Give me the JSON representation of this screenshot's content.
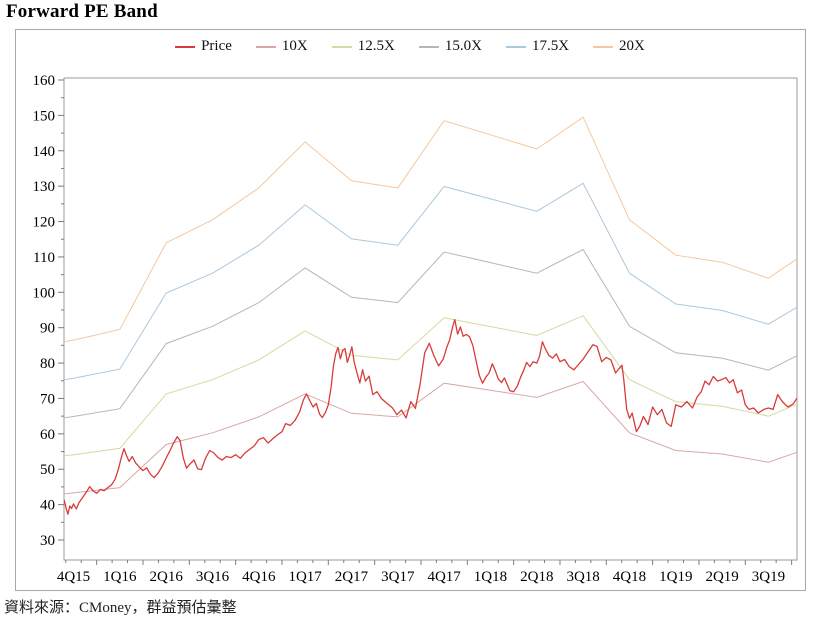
{
  "title": "Forward PE Band",
  "source": {
    "text": "資料來源：CMoney，群益預估彙整"
  },
  "chart_data": {
    "type": "line",
    "title": "Forward PE Band",
    "legend_position": "top-center",
    "grid": false,
    "x_categories": [
      "4Q15",
      "1Q16",
      "2Q16",
      "3Q16",
      "4Q16",
      "1Q17",
      "2Q17",
      "3Q17",
      "4Q17",
      "1Q18",
      "2Q18",
      "3Q18",
      "4Q18",
      "1Q19",
      "2Q19",
      "3Q19"
    ],
    "y_axis": {
      "min": 30,
      "max": 160,
      "major_step": 10,
      "minor_step": 5
    },
    "band_q": [
      -0.205,
      0,
      1,
      2,
      3,
      4,
      5,
      6,
      7,
      8,
      9,
      10,
      11,
      12,
      13,
      14,
      15,
      15.62
    ],
    "series": [
      {
        "name": "Price",
        "color": "#d93b3b",
        "width": 1.3,
        "points": [
          [
            -0.2,
            41.3
          ],
          [
            -0.16,
            39.0
          ],
          [
            -0.12,
            37.3
          ],
          [
            -0.08,
            39.6
          ],
          [
            -0.04,
            38.9
          ],
          [
            0.0,
            40.2
          ],
          [
            0.06,
            38.8
          ],
          [
            0.12,
            40.6
          ],
          [
            0.2,
            42.1
          ],
          [
            0.28,
            43.6
          ],
          [
            0.35,
            45.1
          ],
          [
            0.42,
            43.9
          ],
          [
            0.5,
            43.2
          ],
          [
            0.58,
            44.3
          ],
          [
            0.66,
            43.9
          ],
          [
            0.74,
            44.8
          ],
          [
            0.82,
            45.6
          ],
          [
            0.9,
            47.2
          ],
          [
            0.97,
            50.0
          ],
          [
            1.03,
            53.2
          ],
          [
            1.09,
            55.8
          ],
          [
            1.14,
            54.0
          ],
          [
            1.2,
            52.2
          ],
          [
            1.27,
            53.6
          ],
          [
            1.34,
            51.8
          ],
          [
            1.42,
            50.6
          ],
          [
            1.5,
            49.6
          ],
          [
            1.58,
            50.4
          ],
          [
            1.66,
            48.6
          ],
          [
            1.74,
            47.6
          ],
          [
            1.83,
            49.0
          ],
          [
            1.92,
            51.0
          ],
          [
            2.0,
            53.2
          ],
          [
            2.08,
            55.2
          ],
          [
            2.16,
            57.4
          ],
          [
            2.24,
            59.2
          ],
          [
            2.3,
            58.1
          ],
          [
            2.37,
            53.2
          ],
          [
            2.44,
            50.3
          ],
          [
            2.52,
            51.6
          ],
          [
            2.6,
            52.6
          ],
          [
            2.68,
            50.1
          ],
          [
            2.76,
            49.9
          ],
          [
            2.85,
            53.1
          ],
          [
            2.94,
            55.3
          ],
          [
            3.03,
            54.6
          ],
          [
            3.12,
            53.3
          ],
          [
            3.21,
            52.6
          ],
          [
            3.3,
            53.6
          ],
          [
            3.4,
            53.3
          ],
          [
            3.5,
            54.1
          ],
          [
            3.6,
            53.1
          ],
          [
            3.7,
            54.6
          ],
          [
            3.8,
            55.6
          ],
          [
            3.9,
            56.6
          ],
          [
            4.0,
            58.4
          ],
          [
            4.1,
            58.9
          ],
          [
            4.2,
            57.4
          ],
          [
            4.3,
            58.6
          ],
          [
            4.4,
            59.7
          ],
          [
            4.5,
            60.6
          ],
          [
            4.58,
            62.9
          ],
          [
            4.68,
            62.4
          ],
          [
            4.78,
            63.8
          ],
          [
            4.88,
            66.2
          ],
          [
            4.96,
            69.5
          ],
          [
            5.03,
            71.3
          ],
          [
            5.1,
            69.4
          ],
          [
            5.17,
            67.6
          ],
          [
            5.24,
            68.6
          ],
          [
            5.31,
            65.6
          ],
          [
            5.37,
            64.6
          ],
          [
            5.44,
            66.1
          ],
          [
            5.5,
            68.2
          ],
          [
            5.56,
            73.2
          ],
          [
            5.61,
            79.1
          ],
          [
            5.66,
            82.6
          ],
          [
            5.71,
            84.4
          ],
          [
            5.76,
            81.2
          ],
          [
            5.81,
            83.6
          ],
          [
            5.86,
            84.1
          ],
          [
            5.91,
            80.2
          ],
          [
            5.96,
            82.2
          ],
          [
            6.01,
            84.6
          ],
          [
            6.06,
            80.1
          ],
          [
            6.12,
            77.2
          ],
          [
            6.18,
            74.4
          ],
          [
            6.24,
            78.1
          ],
          [
            6.3,
            74.9
          ],
          [
            6.38,
            76.3
          ],
          [
            6.46,
            71.1
          ],
          [
            6.55,
            71.9
          ],
          [
            6.65,
            69.9
          ],
          [
            6.76,
            68.7
          ],
          [
            6.88,
            67.4
          ],
          [
            6.98,
            65.4
          ],
          [
            7.08,
            66.7
          ],
          [
            7.18,
            64.5
          ],
          [
            7.28,
            69.1
          ],
          [
            7.38,
            67.2
          ],
          [
            7.48,
            73.9
          ],
          [
            7.58,
            82.9
          ],
          [
            7.68,
            85.6
          ],
          [
            7.78,
            82.1
          ],
          [
            7.88,
            79.2
          ],
          [
            7.98,
            81.1
          ],
          [
            8.05,
            84.2
          ],
          [
            8.12,
            86.6
          ],
          [
            8.18,
            90.1
          ],
          [
            8.23,
            92.3
          ],
          [
            8.29,
            88.2
          ],
          [
            8.35,
            90.2
          ],
          [
            8.41,
            87.6
          ],
          [
            8.48,
            88.1
          ],
          [
            8.55,
            87.4
          ],
          [
            8.62,
            84.9
          ],
          [
            8.7,
            80.0
          ],
          [
            8.76,
            76.4
          ],
          [
            8.83,
            74.3
          ],
          [
            8.9,
            76.0
          ],
          [
            8.97,
            77.2
          ],
          [
            9.04,
            79.8
          ],
          [
            9.1,
            78.0
          ],
          [
            9.17,
            75.5
          ],
          [
            9.24,
            74.5
          ],
          [
            9.3,
            75.8
          ],
          [
            9.36,
            74.0
          ],
          [
            9.42,
            72.2
          ],
          [
            9.5,
            71.9
          ],
          [
            9.58,
            73.5
          ],
          [
            9.65,
            76.0
          ],
          [
            9.72,
            78.0
          ],
          [
            9.78,
            80.2
          ],
          [
            9.85,
            79.0
          ],
          [
            9.92,
            80.4
          ],
          [
            10.0,
            80.0
          ],
          [
            10.06,
            82.0
          ],
          [
            10.12,
            86.0
          ],
          [
            10.18,
            84.2
          ],
          [
            10.26,
            82.2
          ],
          [
            10.34,
            81.4
          ],
          [
            10.42,
            82.6
          ],
          [
            10.5,
            80.4
          ],
          [
            10.6,
            81.0
          ],
          [
            10.7,
            79.0
          ],
          [
            10.8,
            78.1
          ],
          [
            10.9,
            79.6
          ],
          [
            11.0,
            81.1
          ],
          [
            11.1,
            83.1
          ],
          [
            11.21,
            85.2
          ],
          [
            11.3,
            84.7
          ],
          [
            11.4,
            80.4
          ],
          [
            11.5,
            81.6
          ],
          [
            11.6,
            80.9
          ],
          [
            11.7,
            77.2
          ],
          [
            11.78,
            78.5
          ],
          [
            11.84,
            79.4
          ],
          [
            11.88,
            75.0
          ],
          [
            11.94,
            66.9
          ],
          [
            12.0,
            64.4
          ],
          [
            12.06,
            65.9
          ],
          [
            12.15,
            60.6
          ],
          [
            12.22,
            62.1
          ],
          [
            12.3,
            64.9
          ],
          [
            12.4,
            62.6
          ],
          [
            12.5,
            67.6
          ],
          [
            12.6,
            65.4
          ],
          [
            12.7,
            66.9
          ],
          [
            12.8,
            63.1
          ],
          [
            12.9,
            62.1
          ],
          [
            13.0,
            68.2
          ],
          [
            13.12,
            67.6
          ],
          [
            13.24,
            69.1
          ],
          [
            13.36,
            67.3
          ],
          [
            13.46,
            70.4
          ],
          [
            13.55,
            71.9
          ],
          [
            13.63,
            74.9
          ],
          [
            13.72,
            73.9
          ],
          [
            13.81,
            76.2
          ],
          [
            13.9,
            74.9
          ],
          [
            14.0,
            75.4
          ],
          [
            14.08,
            75.9
          ],
          [
            14.16,
            74.4
          ],
          [
            14.24,
            75.3
          ],
          [
            14.33,
            71.6
          ],
          [
            14.42,
            72.4
          ],
          [
            14.5,
            68.2
          ],
          [
            14.58,
            66.9
          ],
          [
            14.68,
            67.3
          ],
          [
            14.78,
            65.9
          ],
          [
            14.9,
            66.9
          ],
          [
            15.0,
            67.3
          ],
          [
            15.1,
            66.9
          ],
          [
            15.2,
            71.1
          ],
          [
            15.3,
            69.1
          ],
          [
            15.42,
            67.6
          ],
          [
            15.53,
            68.4
          ],
          [
            15.62,
            70.2
          ]
        ]
      },
      {
        "name": "10X",
        "color": "#d9a8a4",
        "width": 1,
        "values": [
          43.0,
          43.3,
          44.8,
          57.0,
          60.3,
          64.8,
          71.3,
          65.8,
          64.8,
          74.3,
          72.3,
          70.3,
          74.8,
          60.3,
          55.3,
          54.3,
          52.0,
          54.8
        ]
      },
      {
        "name": "12.5X",
        "color": "#d8d8a2",
        "width": 1,
        "values": [
          53.8,
          54.1,
          55.9,
          71.3,
          75.3,
          80.9,
          89.1,
          82.2,
          80.9,
          92.8,
          90.3,
          87.8,
          93.4,
          75.3,
          69.1,
          67.8,
          65.0,
          68.4
        ]
      },
      {
        "name": "15.0X",
        "color": "#b5b5bd",
        "width": 1,
        "values": [
          64.5,
          64.9,
          67.1,
          85.5,
          90.4,
          97.1,
          106.9,
          98.6,
          97.1,
          111.4,
          108.4,
          105.4,
          112.1,
          90.4,
          82.9,
          81.4,
          78.0,
          82.1
        ]
      },
      {
        "name": "17.5X",
        "color": "#abc8dc",
        "width": 1,
        "values": [
          75.3,
          75.7,
          78.3,
          99.8,
          105.4,
          113.3,
          124.7,
          115.1,
          113.3,
          129.9,
          126.4,
          122.9,
          130.8,
          105.4,
          96.7,
          94.9,
          91.0,
          95.8
        ]
      },
      {
        "name": "20X",
        "color": "#f2c99e",
        "width": 1,
        "values": [
          86.0,
          86.5,
          89.5,
          114.0,
          120.5,
          129.5,
          142.5,
          131.5,
          129.5,
          148.5,
          144.5,
          140.5,
          149.5,
          120.5,
          110.5,
          108.5,
          104.0,
          109.5
        ]
      }
    ]
  }
}
